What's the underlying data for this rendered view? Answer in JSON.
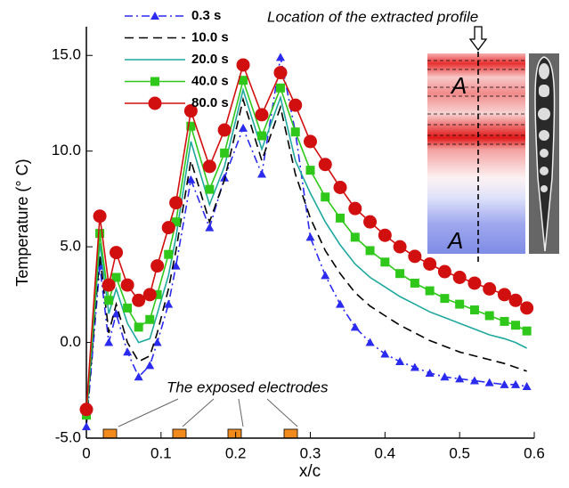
{
  "chart_data": {
    "type": "line",
    "xlabel": "x/c",
    "ylabel": "Temperature (° C)",
    "annotations": {
      "profile": "Location of the extracted profile",
      "electrodes": "The exposed electrodes",
      "section_top": "A",
      "section_bottom": "A"
    },
    "xlim": [
      0,
      0.6
    ],
    "ylim": [
      -5,
      16.5
    ],
    "xticks": [
      0,
      0.1,
      0.2,
      0.3,
      0.4,
      0.5,
      0.6
    ],
    "yticks": [
      {
        "value": -5,
        "label": "-5.0"
      },
      {
        "value": 0,
        "label": "0.0"
      },
      {
        "value": 5,
        "label": "5.0"
      },
      {
        "value": 10,
        "label": "10.0"
      },
      {
        "value": 15,
        "label": "15.0"
      }
    ],
    "legend": "upper-left",
    "x": [
      0,
      0.018,
      0.03,
      0.04,
      0.055,
      0.07,
      0.085,
      0.095,
      0.11,
      0.12,
      0.14,
      0.165,
      0.185,
      0.21,
      0.235,
      0.26,
      0.28,
      0.3,
      0.32,
      0.34,
      0.36,
      0.38,
      0.4,
      0.42,
      0.44,
      0.46,
      0.48,
      0.5,
      0.52,
      0.54,
      0.56,
      0.575,
      0.59
    ],
    "series": [
      {
        "name": "0.3 s",
        "color": "#2b2bf0",
        "dash": "dashdot",
        "marker": "triangle",
        "values": [
          -4.4,
          4.0,
          0.0,
          1.5,
          -0.5,
          -1.8,
          -1.2,
          0.0,
          2.0,
          4.0,
          8.5,
          6.0,
          8.6,
          11.2,
          8.8,
          14.9,
          11.0,
          5.5,
          3.5,
          2.0,
          0.8,
          0.0,
          -0.6,
          -1.0,
          -1.3,
          -1.6,
          -1.8,
          -1.9,
          -2.0,
          -2.1,
          -2.2,
          -2.2,
          -2.3
        ]
      },
      {
        "name": "10.0 s",
        "color": "#000000",
        "dash": "dashed",
        "marker": "none",
        "values": [
          -4.2,
          4.6,
          0.5,
          2.0,
          0.0,
          -1.0,
          -0.7,
          0.5,
          2.8,
          4.8,
          9.5,
          6.3,
          8.5,
          12.7,
          9.5,
          12.3,
          8.8,
          6.5,
          4.8,
          3.6,
          2.6,
          1.9,
          1.4,
          0.9,
          0.5,
          0.1,
          -0.2,
          -0.5,
          -0.7,
          -0.9,
          -1.1,
          -1.3,
          -1.5
        ]
      },
      {
        "name": "20.0 s",
        "color": "#1fa89e",
        "dash": "solid",
        "marker": "none",
        "values": [
          -4.0,
          5.2,
          1.5,
          2.8,
          1.0,
          0.0,
          0.2,
          1.5,
          3.5,
          5.5,
          10.5,
          7.2,
          9.2,
          13.2,
          10.1,
          12.8,
          9.5,
          7.8,
          6.3,
          5.1,
          4.1,
          3.4,
          2.9,
          2.4,
          2.0,
          1.6,
          1.3,
          1.0,
          0.7,
          0.4,
          0.2,
          0.0,
          -0.3
        ]
      },
      {
        "name": "40.0 s",
        "color": "#2fc81a",
        "dash": "solid",
        "marker": "square",
        "values": [
          -3.8,
          5.7,
          2.2,
          3.4,
          1.8,
          0.8,
          1.2,
          2.5,
          4.6,
          6.3,
          11.3,
          8.0,
          9.9,
          13.7,
          10.8,
          13.3,
          11.0,
          9.0,
          7.6,
          6.5,
          5.5,
          4.8,
          4.2,
          3.6,
          3.1,
          2.7,
          2.3,
          2.0,
          1.7,
          1.4,
          1.1,
          0.9,
          0.6
        ]
      },
      {
        "name": "80.0 s",
        "color": "#d10f0f",
        "dash": "solid",
        "marker": "circle",
        "values": [
          -3.5,
          6.6,
          3.0,
          4.7,
          3.0,
          2.2,
          2.5,
          4.0,
          6.0,
          7.3,
          12.1,
          9.2,
          11.1,
          14.5,
          11.9,
          14.1,
          12.4,
          10.5,
          9.3,
          8.1,
          7.0,
          6.3,
          5.6,
          5.0,
          4.5,
          4.1,
          3.7,
          3.4,
          3.1,
          2.8,
          2.5,
          2.2,
          1.8
        ]
      }
    ]
  }
}
